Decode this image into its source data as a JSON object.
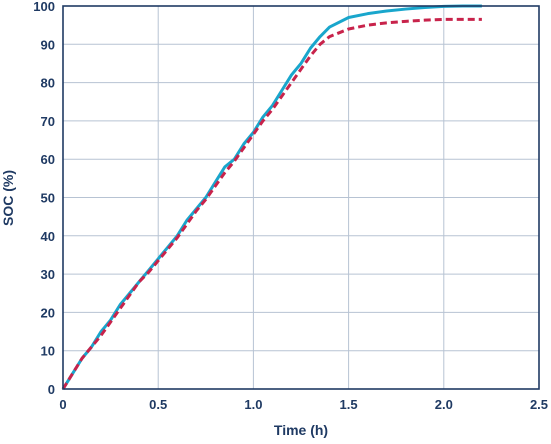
{
  "chart_data": {
    "type": "line",
    "title": "",
    "xlabel": "Time (h)",
    "ylabel": "SOC (%)",
    "xlim": [
      0,
      2.5
    ],
    "ylim": [
      0,
      100
    ],
    "grid": true,
    "x_ticks": [
      "0",
      "0.5",
      "1.0",
      "1.5",
      "2.0",
      "2.5"
    ],
    "y_ticks": [
      "0",
      "10",
      "20",
      "30",
      "40",
      "50",
      "60",
      "70",
      "80",
      "90",
      "100"
    ],
    "series": [
      {
        "color": "#19a6cc",
        "dash": "solid",
        "points": [
          [
            0,
            0
          ],
          [
            0.05,
            4
          ],
          [
            0.1,
            8
          ],
          [
            0.15,
            11
          ],
          [
            0.2,
            15
          ],
          [
            0.25,
            18
          ],
          [
            0.3,
            22
          ],
          [
            0.35,
            25
          ],
          [
            0.4,
            28
          ],
          [
            0.45,
            31
          ],
          [
            0.5,
            34
          ],
          [
            0.55,
            37
          ],
          [
            0.6,
            40
          ],
          [
            0.65,
            44
          ],
          [
            0.7,
            47
          ],
          [
            0.75,
            50
          ],
          [
            0.8,
            54
          ],
          [
            0.85,
            58
          ],
          [
            0.9,
            60
          ],
          [
            0.95,
            64
          ],
          [
            1.0,
            67
          ],
          [
            1.05,
            71
          ],
          [
            1.1,
            74
          ],
          [
            1.15,
            78
          ],
          [
            1.2,
            82
          ],
          [
            1.25,
            85
          ],
          [
            1.3,
            89
          ],
          [
            1.35,
            92
          ],
          [
            1.4,
            94.5
          ],
          [
            1.5,
            97
          ],
          [
            1.6,
            98
          ],
          [
            1.7,
            98.7
          ],
          [
            1.8,
            99.2
          ],
          [
            1.9,
            99.6
          ],
          [
            2.0,
            99.9
          ],
          [
            2.1,
            100
          ],
          [
            2.2,
            100
          ]
        ]
      },
      {
        "color": "#c8234b",
        "dash": "dashed",
        "points": [
          [
            0,
            0
          ],
          [
            0.05,
            4
          ],
          [
            0.1,
            8
          ],
          [
            0.15,
            11
          ],
          [
            0.2,
            14
          ],
          [
            0.25,
            17.5
          ],
          [
            0.3,
            21
          ],
          [
            0.35,
            24.5
          ],
          [
            0.4,
            28
          ],
          [
            0.45,
            30.5
          ],
          [
            0.5,
            33.5
          ],
          [
            0.55,
            36.5
          ],
          [
            0.6,
            39.5
          ],
          [
            0.65,
            43
          ],
          [
            0.7,
            46.5
          ],
          [
            0.75,
            49.5
          ],
          [
            0.8,
            53
          ],
          [
            0.85,
            56.5
          ],
          [
            0.9,
            59.5
          ],
          [
            0.95,
            63
          ],
          [
            1.0,
            66.5
          ],
          [
            1.05,
            70
          ],
          [
            1.1,
            73
          ],
          [
            1.15,
            76.5
          ],
          [
            1.2,
            80
          ],
          [
            1.25,
            83.5
          ],
          [
            1.3,
            87
          ],
          [
            1.35,
            90
          ],
          [
            1.4,
            92
          ],
          [
            1.5,
            94
          ],
          [
            1.6,
            95
          ],
          [
            1.7,
            95.6
          ],
          [
            1.8,
            96
          ],
          [
            1.9,
            96.3
          ],
          [
            2.0,
            96.5
          ],
          [
            2.1,
            96.5
          ],
          [
            2.2,
            96.5
          ]
        ]
      }
    ]
  }
}
